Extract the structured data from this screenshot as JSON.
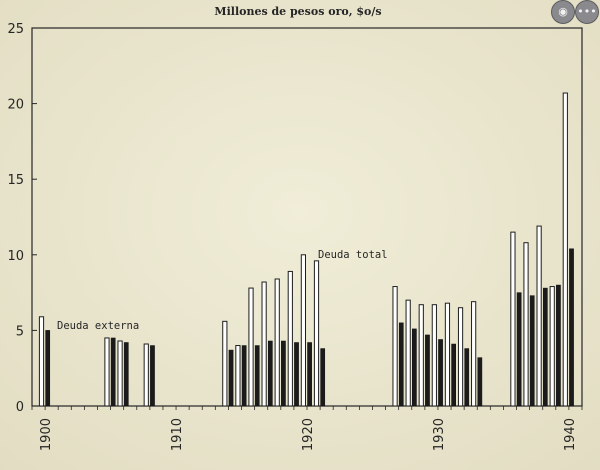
{
  "chart_data": {
    "type": "bar",
    "title": "Millones de pesos oro, $o/s",
    "xlabel": "",
    "ylabel": "",
    "xlim": [
      1899,
      1941
    ],
    "ylim": [
      0,
      25
    ],
    "y_ticks": [
      0,
      5,
      10,
      15,
      20,
      25
    ],
    "x_ticks": [
      1900,
      1910,
      1920,
      1930,
      1940
    ],
    "grid": false,
    "annotations": [
      "Deuda externa",
      "Deuda total"
    ],
    "series": [
      {
        "name": "Deuda total",
        "style": "outline",
        "color": "#ffffff",
        "points": [
          [
            1900,
            5.9
          ],
          [
            1905,
            4.5
          ],
          [
            1906,
            4.3
          ],
          [
            1908,
            4.1
          ],
          [
            1914,
            5.6
          ],
          [
            1915,
            4.0
          ],
          [
            1916,
            7.8
          ],
          [
            1917,
            8.2
          ],
          [
            1918,
            8.4
          ],
          [
            1919,
            8.9
          ],
          [
            1920,
            10.0
          ],
          [
            1921,
            9.6
          ],
          [
            1927,
            7.9
          ],
          [
            1928,
            7.0
          ],
          [
            1929,
            6.7
          ],
          [
            1930,
            6.7
          ],
          [
            1931,
            6.8
          ],
          [
            1932,
            6.5
          ],
          [
            1933,
            6.9
          ],
          [
            1936,
            11.5
          ],
          [
            1937,
            10.8
          ],
          [
            1938,
            11.9
          ],
          [
            1939,
            7.9
          ],
          [
            1940,
            20.7
          ]
        ]
      },
      {
        "name": "Deuda externa",
        "style": "solid",
        "color": "#1b1b1b",
        "points": [
          [
            1900,
            5.0
          ],
          [
            1905,
            4.5
          ],
          [
            1906,
            4.2
          ],
          [
            1908,
            4.0
          ],
          [
            1914,
            3.7
          ],
          [
            1915,
            4.0
          ],
          [
            1916,
            4.0
          ],
          [
            1917,
            4.3
          ],
          [
            1918,
            4.3
          ],
          [
            1919,
            4.2
          ],
          [
            1920,
            4.2
          ],
          [
            1921,
            3.8
          ],
          [
            1927,
            5.5
          ],
          [
            1928,
            5.1
          ],
          [
            1929,
            4.7
          ],
          [
            1930,
            4.4
          ],
          [
            1931,
            4.1
          ],
          [
            1932,
            3.8
          ],
          [
            1933,
            3.2
          ],
          [
            1936,
            7.5
          ],
          [
            1937,
            7.3
          ],
          [
            1938,
            7.8
          ],
          [
            1939,
            8.0
          ],
          [
            1940,
            10.4
          ]
        ]
      }
    ]
  },
  "toolbar": {
    "buttons": [
      {
        "label": "◉",
        "icon": "target-icon"
      },
      {
        "label": "•••",
        "icon": "more-icon"
      }
    ]
  }
}
